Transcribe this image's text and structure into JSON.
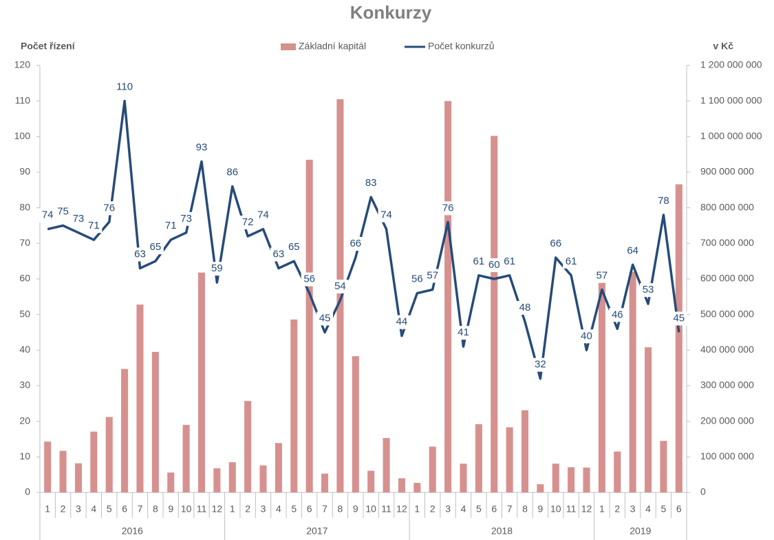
{
  "chart_data": {
    "type": "bar_line",
    "title": "Konkurzy",
    "y_label": "Počet řízení",
    "y2_label": "v Kč",
    "category_groups": [
      {
        "name": "2016",
        "months": [
          "1",
          "2",
          "3",
          "4",
          "5",
          "6",
          "7",
          "8",
          "9",
          "10",
          "11",
          "12"
        ]
      },
      {
        "name": "2017",
        "months": [
          "1",
          "2",
          "3",
          "4",
          "5",
          "6",
          "7",
          "8",
          "9",
          "10",
          "11",
          "12"
        ]
      },
      {
        "name": "2018",
        "months": [
          "1",
          "2",
          "3",
          "4",
          "5",
          "6",
          "7",
          "8",
          "9",
          "10",
          "11",
          "12"
        ]
      },
      {
        "name": "2019",
        "months": [
          "1",
          "2",
          "3",
          "4",
          "5",
          "6"
        ]
      }
    ],
    "series": [
      {
        "name": "Základní kapitál",
        "type": "bar",
        "axis": "y2",
        "color": "#d6918f",
        "values": [
          143000000,
          117000000,
          82000000,
          171000000,
          212000000,
          347000000,
          528000000,
          395000000,
          56000000,
          190000000,
          618000000,
          68000000,
          85000000,
          257000000,
          76000000,
          139000000,
          486000000,
          935000000,
          53000000,
          1105000000,
          383000000,
          61000000,
          153000000,
          40000000,
          27000000,
          129000000,
          1100000000,
          81000000,
          192000000,
          1002000000,
          183000000,
          231000000,
          23000000,
          81000000,
          71000000,
          70000000,
          589000000,
          115000000,
          620000000,
          408000000,
          145000000,
          866000000
        ]
      },
      {
        "name": "Počet konkurzů",
        "type": "line",
        "axis": "y",
        "color": "#264b7a",
        "values": [
          74,
          75,
          73,
          71,
          76,
          110,
          63,
          65,
          71,
          73,
          93,
          59,
          86,
          72,
          74,
          63,
          65,
          56,
          45,
          54,
          66,
          83,
          74,
          44,
          56,
          57,
          76,
          41,
          61,
          60,
          61,
          48,
          32,
          66,
          61,
          40,
          57,
          46,
          64,
          53,
          78,
          45
        ]
      }
    ],
    "ylim": [
      0,
      120
    ],
    "yticks": [
      0,
      10,
      20,
      30,
      40,
      50,
      60,
      70,
      80,
      90,
      100,
      110,
      120
    ],
    "y2lim": [
      0,
      1200000000
    ],
    "y2ticks": [
      0,
      {
        "value": 100000000,
        "label": "100 000 000"
      },
      {
        "value": 200000000,
        "label": "200 000 000"
      },
      {
        "value": 300000000,
        "label": "300 000 000"
      },
      {
        "value": 400000000,
        "label": "400 000 000"
      },
      {
        "value": 500000000,
        "label": "500 000 000"
      },
      {
        "value": 600000000,
        "label": "600 000 000"
      },
      {
        "value": 700000000,
        "label": "700 000 000"
      },
      {
        "value": 800000000,
        "label": "800 000 000"
      },
      {
        "value": 900000000,
        "label": "900 000 000"
      },
      {
        "value": 1000000000,
        "label": "1 000 000 000"
      },
      {
        "value": 1100000000,
        "label": "1 100 000 000"
      },
      {
        "value": 1200000000,
        "label": "1 200 000 000"
      }
    ],
    "legend": "top"
  }
}
